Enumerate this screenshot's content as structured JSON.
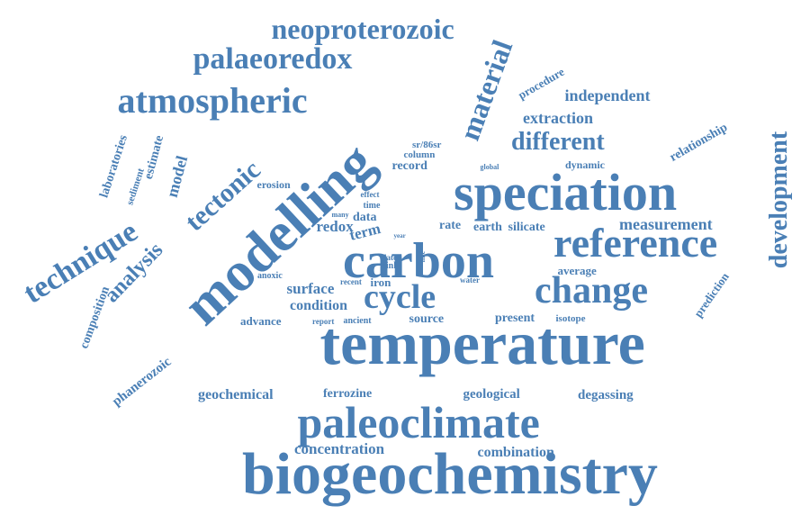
{
  "style": {
    "word_color": "#4a7fb5",
    "background": "#ffffff"
  },
  "words": [
    "biogeochemistry",
    "temperature",
    "modelling",
    "speciation",
    "carbon",
    "reference",
    "paleoclimate",
    "change",
    "cycle",
    "atmospheric",
    "development",
    "palaeoredox",
    "neoproterozoic",
    "tectonic",
    "material",
    "technique",
    "different",
    "analysis",
    "measurement",
    "surface",
    "condition",
    "concentration",
    "combination",
    "geochemical",
    "geological",
    "degassing",
    "ferrozine",
    "phanerozoic",
    "composition",
    "laboratories",
    "estimate",
    "model",
    "sediment",
    "independent",
    "extraction",
    "procedure",
    "relationship",
    "prediction",
    "present",
    "isotope",
    "source",
    "advance",
    "report",
    "ancient",
    "redox",
    "term",
    "rate",
    "earth",
    "silicate",
    "average",
    "dynamic",
    "record",
    "column",
    "sr/86sr",
    "global",
    "erosion",
    "effect",
    "time",
    "many",
    "data",
    "iron",
    "recent",
    "anoxic",
    "water",
    "late",
    "sink",
    "line",
    "year"
  ]
}
